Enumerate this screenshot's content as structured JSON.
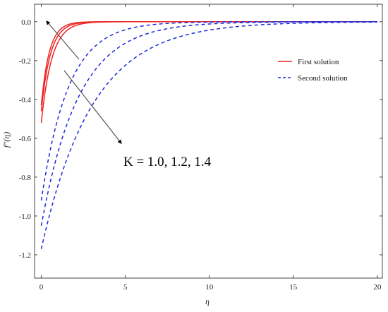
{
  "chart_data": {
    "type": "line",
    "xlabel": "η",
    "ylabel": "f''(η)",
    "xlim": [
      -0.4,
      20.3
    ],
    "ylim": [
      -1.32,
      0.09
    ],
    "xticks": [
      0,
      5,
      10,
      15,
      20
    ],
    "yticks": [
      0.0,
      -0.2,
      -0.4,
      -0.6,
      -0.8,
      -1.0,
      -1.2
    ],
    "ytick_labels": [
      "0.0",
      "-0.2",
      "-0.4",
      "-0.6",
      "-0.8",
      "-1.0",
      "-1.2"
    ],
    "legend_position": "top-right",
    "annotation": "K = 1.0, 1.2, 1.4",
    "colors": {
      "first": "#ee2222",
      "second": "#1b2adb",
      "arrow": "#555555"
    },
    "series": [
      {
        "name": "First solution",
        "style": "solid",
        "values_at_zero": [
          -0.43,
          -0.46,
          -0.52
        ],
        "decay_rates": [
          2.1,
          1.85,
          1.6
        ]
      },
      {
        "name": "Second solution",
        "style": "dashed",
        "values_at_zero": [
          -0.92,
          -1.05,
          -1.17
        ],
        "decay_rates": [
          0.62,
          0.45,
          0.33
        ]
      }
    ]
  }
}
